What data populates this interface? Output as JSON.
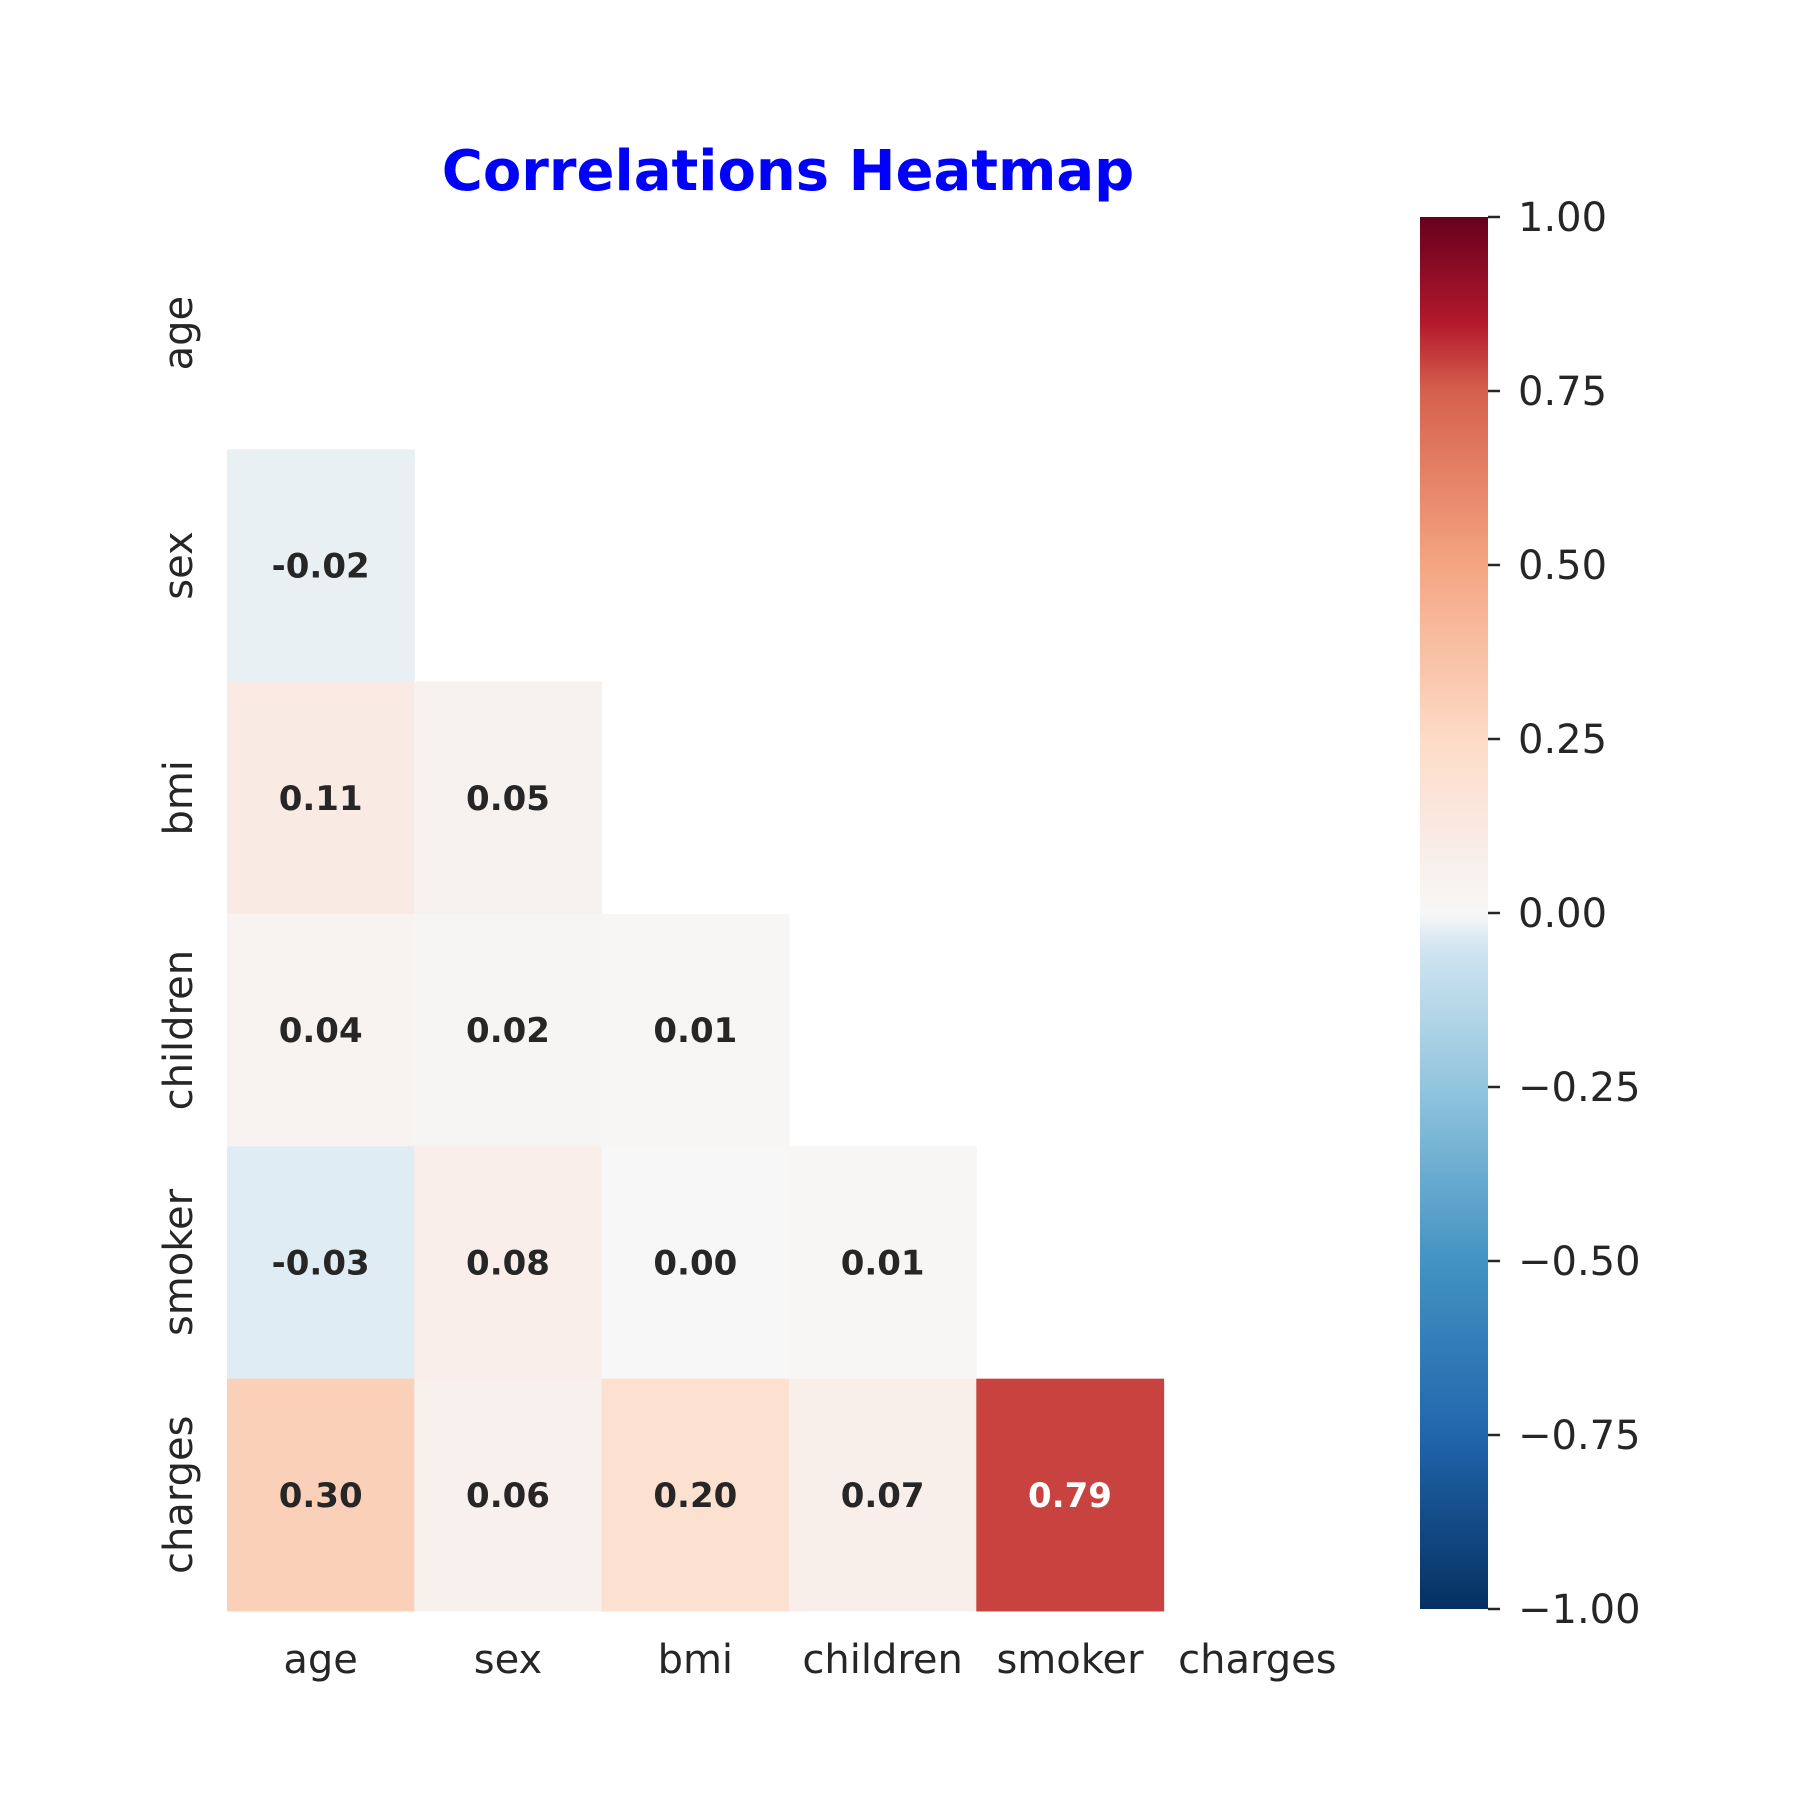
{
  "chart_data": {
    "type": "heatmap",
    "title": "Correlations Heatmap",
    "title_color": "#0000ff",
    "variables": [
      "age",
      "sex",
      "bmi",
      "children",
      "smoker",
      "charges"
    ],
    "mask": "upper-triangle-and-diagonal",
    "cells": [
      {
        "row": "sex",
        "col": "age",
        "value": -0.02,
        "label": "-0.02"
      },
      {
        "row": "bmi",
        "col": "age",
        "value": 0.11,
        "label": "0.11"
      },
      {
        "row": "bmi",
        "col": "sex",
        "value": 0.05,
        "label": "0.05"
      },
      {
        "row": "children",
        "col": "age",
        "value": 0.04,
        "label": "0.04"
      },
      {
        "row": "children",
        "col": "sex",
        "value": 0.02,
        "label": "0.02"
      },
      {
        "row": "children",
        "col": "bmi",
        "value": 0.01,
        "label": "0.01"
      },
      {
        "row": "smoker",
        "col": "age",
        "value": -0.03,
        "label": "-0.03"
      },
      {
        "row": "smoker",
        "col": "sex",
        "value": 0.08,
        "label": "0.08"
      },
      {
        "row": "smoker",
        "col": "bmi",
        "value": 0.0,
        "label": "0.00"
      },
      {
        "row": "smoker",
        "col": "children",
        "value": 0.01,
        "label": "0.01"
      },
      {
        "row": "charges",
        "col": "age",
        "value": 0.3,
        "label": "0.30"
      },
      {
        "row": "charges",
        "col": "sex",
        "value": 0.06,
        "label": "0.06"
      },
      {
        "row": "charges",
        "col": "bmi",
        "value": 0.2,
        "label": "0.20"
      },
      {
        "row": "charges",
        "col": "children",
        "value": 0.07,
        "label": "0.07"
      },
      {
        "row": "charges",
        "col": "smoker",
        "value": 0.79,
        "label": "0.79"
      }
    ],
    "colorbar": {
      "colormap": "RdBu_r",
      "range": [
        -1.0,
        1.0
      ],
      "ticks": [
        1.0,
        0.75,
        0.5,
        0.25,
        0.0,
        -0.25,
        -0.5,
        -0.75,
        -1.0
      ],
      "tick_labels": [
        "1.00",
        "0.75",
        "0.50",
        "0.25",
        "0.00",
        "−0.25",
        "−0.50",
        "−0.75",
        "−1.00"
      ]
    },
    "grid": false,
    "legend": "colorbar-right"
  }
}
